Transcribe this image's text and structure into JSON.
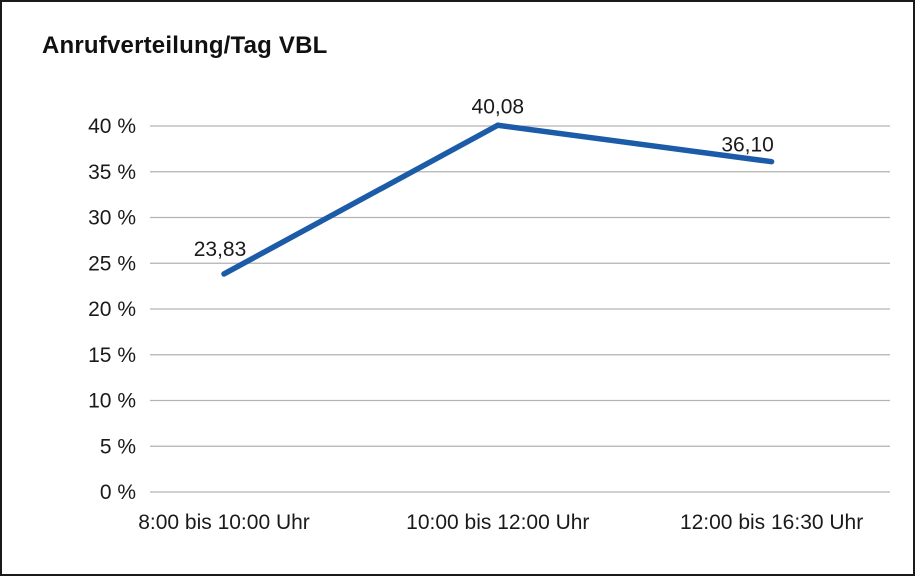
{
  "page": {
    "title": "Anrufverteilung/Tag VBL"
  },
  "chart_data": {
    "type": "line",
    "title": "Anrufverteilung/Tag VBL",
    "categories": [
      "8:00 bis 10:00 Uhr",
      "10:00 bis 12:00 Uhr",
      "12:00 bis 16:30 Uhr"
    ],
    "series": [
      {
        "name": "Anrufverteilung/Tag VBL",
        "values": [
          23.83,
          40.08,
          36.1
        ]
      }
    ],
    "data_labels": [
      "23,83",
      "40,08",
      "36,10"
    ],
    "xlabel": "",
    "ylabel": "",
    "ylim": [
      0,
      40
    ],
    "ytick_step": 5,
    "ytick_labels": [
      "0 %",
      "5 %",
      "10 %",
      "15 %",
      "20 %",
      "25 %",
      "30 %",
      "35 %",
      "40 %"
    ],
    "grid": "horizontal",
    "legend": "none",
    "colors": {
      "line": "#1b5ba8",
      "grid": "#b3b3b3",
      "text": "#1a1a1a"
    }
  }
}
